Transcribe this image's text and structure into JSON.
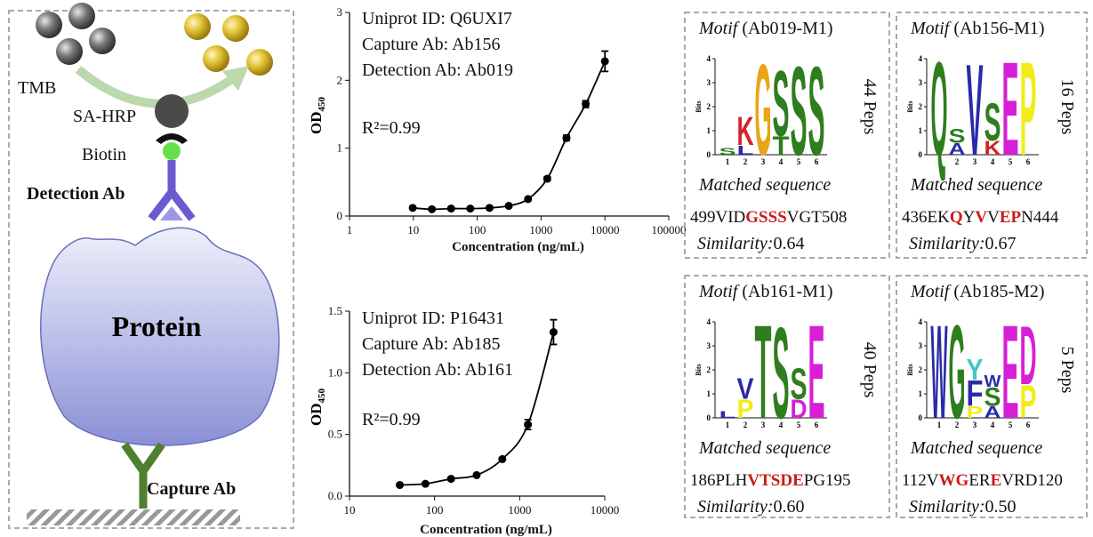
{
  "diagram": {
    "labels": {
      "tmb": "TMB",
      "sa_hrp": "SA-HRP",
      "biotin": "Biotin",
      "detection_ab": "Detection Ab",
      "protein": "Protein",
      "capture_ab": "Capture Ab"
    }
  },
  "chart_data": [
    {
      "type": "scatter",
      "annotations": [
        "Uniprot ID: Q6UXI7",
        "Capture Ab: Ab156",
        "Detection Ab: Ab019"
      ],
      "r_squared": "R²=0.99",
      "ylabel": "OD",
      "ylabel_subscript": "450",
      "xlabel": "Concentration (ng/mL)",
      "x": [
        9.77,
        19.5,
        39,
        78,
        156,
        312,
        625,
        1250,
        2500,
        5000,
        10000
      ],
      "values": [
        0.12,
        0.1,
        0.11,
        0.11,
        0.12,
        0.15,
        0.25,
        0.55,
        1.15,
        1.65,
        2.28
      ],
      "errors": [
        0.02,
        0.02,
        0.02,
        0.02,
        0.02,
        0.02,
        0.02,
        0.03,
        0.04,
        0.05,
        0.15
      ],
      "color": "#000000",
      "xscale": "log",
      "fit_line": true,
      "xlim": [
        1,
        100000
      ],
      "xticks": [
        1,
        10,
        100,
        1000,
        10000,
        100000
      ],
      "ylim": [
        0,
        3
      ],
      "yticks": [
        0,
        1,
        2,
        3
      ]
    },
    {
      "type": "scatter",
      "annotations": [
        "Uniprot ID: P16431",
        "Capture Ab: Ab185",
        "Detection Ab: Ab161"
      ],
      "r_squared": "R²=0.99",
      "ylabel": "OD",
      "ylabel_subscript": "450",
      "xlabel": "Concentration (ng/mL)",
      "x": [
        39,
        78,
        156,
        312,
        625,
        1250,
        2500
      ],
      "values": [
        0.09,
        0.1,
        0.14,
        0.17,
        0.3,
        0.58,
        1.33
      ],
      "errors": [
        0.01,
        0.01,
        0.01,
        0.01,
        0.01,
        0.04,
        0.1
      ],
      "color": "#000000",
      "xscale": "log",
      "fit_line": true,
      "xlim": [
        10,
        10000
      ],
      "xticks": [
        10,
        100,
        1000,
        10000
      ],
      "ylim": [
        0,
        1.5
      ],
      "yticks": [
        {
          "value": 0,
          "label": "0.0"
        },
        {
          "value": 0.5,
          "label": "0.5"
        },
        {
          "value": 1,
          "label": "1.0"
        },
        {
          "value": 1.5,
          "label": "1.5"
        }
      ]
    }
  ],
  "logo_axes": {
    "ylabel": "Bits",
    "yticks": [
      0,
      1,
      2,
      3,
      4
    ],
    "xticks": [
      1,
      2,
      3,
      4,
      5,
      6
    ]
  },
  "motifs": [
    {
      "motif_label": "Motif",
      "antibody": "(Ab019-M1)",
      "peps": "44 Peps",
      "matched_label": "Matched sequence",
      "sequence": [
        {
          "text": "499VID",
          "highlight": false
        },
        {
          "text": "GSSS",
          "highlight": true
        },
        {
          "text": "VGT508",
          "highlight": false
        }
      ],
      "similarity_label": "Similarity:",
      "similarity": "0.64",
      "logo": [
        [
          {
            "letter": "S",
            "bits": 0.3,
            "color": "#2e7d1e"
          }
        ],
        [
          {
            "letter": "K",
            "bits": 1.2,
            "color": "#d4232a"
          },
          {
            "letter": "L",
            "bits": 0.4,
            "color": "#2a2aa8"
          }
        ],
        [
          {
            "letter": "G",
            "bits": 3.9,
            "color": "#e8a516"
          }
        ],
        [
          {
            "letter": "S",
            "bits": 2.8,
            "color": "#2e7d1e"
          },
          {
            "letter": "T",
            "bits": 0.8,
            "color": "#2e7d1e"
          }
        ],
        [
          {
            "letter": "S",
            "bits": 3.8,
            "color": "#2e7d1e"
          }
        ],
        [
          {
            "letter": "S",
            "bits": 3.8,
            "color": "#2e7d1e"
          }
        ]
      ]
    },
    {
      "motif_label": "Motif",
      "antibody": "(Ab156-M1)",
      "peps": "16 Peps",
      "matched_label": "Matched sequence",
      "sequence": [
        {
          "text": "436EK",
          "highlight": false
        },
        {
          "text": "Q",
          "highlight": true
        },
        {
          "text": "Y",
          "highlight": false
        },
        {
          "text": "V",
          "highlight": true
        },
        {
          "text": "V",
          "highlight": false
        },
        {
          "text": "EP",
          "highlight": true
        },
        {
          "text": "N444",
          "highlight": false
        }
      ],
      "similarity_label": "Similarity:",
      "similarity": "0.67",
      "logo": [
        [
          {
            "letter": "Q",
            "bits": 4,
            "color": "#2e7d1e"
          }
        ],
        [
          {
            "letter": "S",
            "bits": 0.6,
            "color": "#2e7d1e"
          },
          {
            "letter": "A",
            "bits": 0.5,
            "color": "#2a2aa8"
          }
        ],
        [
          {
            "letter": "V",
            "bits": 3.9,
            "color": "#2a2aa8"
          }
        ],
        [
          {
            "letter": "S",
            "bits": 1.6,
            "color": "#2e7d1e"
          },
          {
            "letter": "K",
            "bits": 0.6,
            "color": "#d4232a"
          }
        ],
        [
          {
            "letter": "E",
            "bits": 4,
            "color": "#d61fd6"
          }
        ],
        [
          {
            "letter": "P",
            "bits": 4,
            "color": "#f2ec1a"
          }
        ]
      ]
    },
    {
      "motif_label": "Motif",
      "antibody": "(Ab161-M1)",
      "peps": "40 Peps",
      "matched_label": "Matched sequence",
      "sequence": [
        {
          "text": "186PLH",
          "highlight": false
        },
        {
          "text": "VTSDE",
          "highlight": true
        },
        {
          "text": "PG195",
          "highlight": false
        }
      ],
      "similarity_label": "Similarity:",
      "similarity": "0.60",
      "logo": [
        [
          {
            "letter": "L",
            "bits": 0.3,
            "color": "#2a2aa8"
          }
        ],
        [
          {
            "letter": "V",
            "bits": 0.9,
            "color": "#2a2aa8"
          },
          {
            "letter": "P",
            "bits": 0.8,
            "color": "#f2ec1a"
          }
        ],
        [
          {
            "letter": "T",
            "bits": 4,
            "color": "#2e7d1e"
          }
        ],
        [
          {
            "letter": "S",
            "bits": 3.9,
            "color": "#2e7d1e"
          }
        ],
        [
          {
            "letter": "S",
            "bits": 1.3,
            "color": "#2e7d1e"
          },
          {
            "letter": "D",
            "bits": 0.8,
            "color": "#d61fd6"
          }
        ],
        [
          {
            "letter": "E",
            "bits": 4,
            "color": "#d61fd6"
          }
        ]
      ]
    },
    {
      "motif_label": "Motif",
      "antibody": "(Ab185-M2)",
      "peps": "5 Peps",
      "matched_label": "Matched sequence",
      "sequence": [
        {
          "text": "112V",
          "highlight": false
        },
        {
          "text": "WG",
          "highlight": true
        },
        {
          "text": "ER",
          "highlight": false
        },
        {
          "text": "E",
          "highlight": true
        },
        {
          "text": "VRD120",
          "highlight": false
        }
      ],
      "similarity_label": "Similarity:",
      "similarity": "0.50",
      "logo": [
        [
          {
            "letter": "W",
            "bits": 4,
            "color": "#2a2aa8"
          }
        ],
        [
          {
            "letter": "G",
            "bits": 4,
            "color": "#2e7d1e"
          }
        ],
        [
          {
            "letter": "Y",
            "bits": 0.9,
            "color": "#3fc9c2"
          },
          {
            "letter": "F",
            "bits": 1.1,
            "color": "#2a2aa8"
          },
          {
            "letter": "P",
            "bits": 0.5,
            "color": "#f2ec1a"
          }
        ],
        [
          {
            "letter": "W",
            "bits": 0.5,
            "color": "#2a2aa8"
          },
          {
            "letter": "S",
            "bits": 0.8,
            "color": "#2e7d1e"
          },
          {
            "letter": "A",
            "bits": 0.5,
            "color": "#2a2aa8"
          }
        ],
        [
          {
            "letter": "E",
            "bits": 4,
            "color": "#d61fd6"
          }
        ],
        [
          {
            "letter": "D",
            "bits": 2.5,
            "color": "#d61fd6"
          },
          {
            "letter": "P",
            "bits": 1.4,
            "color": "#f2ec1a"
          }
        ]
      ]
    }
  ]
}
